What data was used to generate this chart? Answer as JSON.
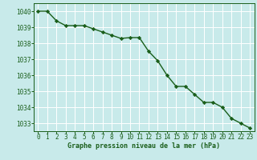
{
  "x": [
    0,
    1,
    2,
    3,
    4,
    5,
    6,
    7,
    8,
    9,
    10,
    11,
    12,
    13,
    14,
    15,
    16,
    17,
    18,
    19,
    20,
    21,
    22,
    23
  ],
  "y": [
    1040.0,
    1040.0,
    1039.4,
    1039.1,
    1039.1,
    1039.1,
    1038.9,
    1038.7,
    1038.5,
    1038.3,
    1038.35,
    1038.35,
    1037.5,
    1036.9,
    1036.0,
    1035.3,
    1035.3,
    1034.8,
    1034.3,
    1034.3,
    1034.0,
    1033.3,
    1033.0,
    1032.7
  ],
  "line_color": "#1a5e1a",
  "marker": "D",
  "marker_size": 2.2,
  "line_width": 1.0,
  "bg_color": "#c8eaea",
  "grid_color": "#ffffff",
  "xlabel": "Graphe pression niveau de la mer (hPa)",
  "xlabel_color": "#1a5e1a",
  "tick_color": "#1a5e1a",
  "ylim": [
    1032.5,
    1040.5
  ],
  "xlim": [
    -0.5,
    23.5
  ],
  "yticks": [
    1033,
    1034,
    1035,
    1036,
    1037,
    1038,
    1039,
    1040
  ],
  "xticks": [
    0,
    1,
    2,
    3,
    4,
    5,
    6,
    7,
    8,
    9,
    10,
    11,
    12,
    13,
    14,
    15,
    16,
    17,
    18,
    19,
    20,
    21,
    22,
    23
  ],
  "xtick_labels": [
    "0",
    "1",
    "2",
    "3",
    "4",
    "5",
    "6",
    "7",
    "8",
    "9",
    "10",
    "11",
    "12",
    "13",
    "14",
    "15",
    "16",
    "17",
    "18",
    "19",
    "20",
    "21",
    "22",
    "23"
  ],
  "ytick_labels": [
    "1033",
    "1034",
    "1035",
    "1036",
    "1037",
    "1038",
    "1039",
    "1040"
  ],
  "tick_fontsize": 5.5,
  "xlabel_fontsize": 6.0
}
